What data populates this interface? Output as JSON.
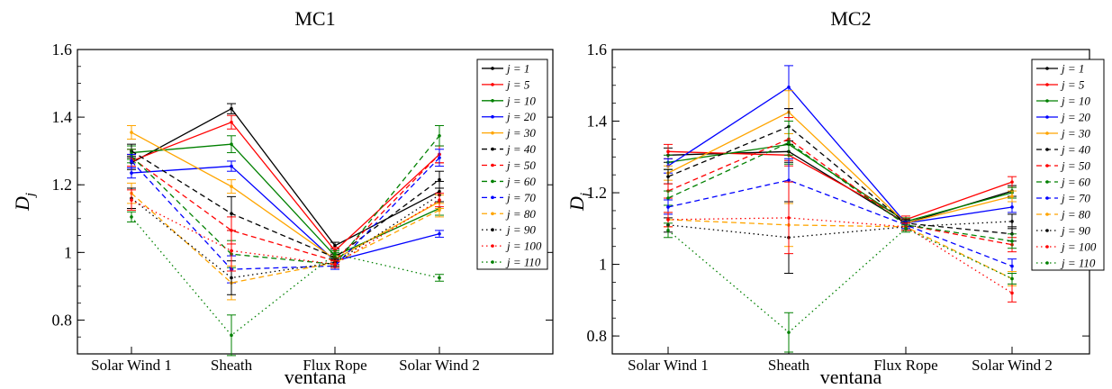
{
  "figure": {
    "charts": [
      {
        "title": "MC1"
      },
      {
        "title": "MC2"
      }
    ]
  },
  "chart_data": [
    {
      "type": "line",
      "title": "MC1",
      "xlabel": "ventana",
      "ylabel_main": "D",
      "ylabel_sub": "j",
      "ylim": [
        0.7,
        1.6
      ],
      "yticks": [
        "0.8",
        "1",
        "1.2",
        "1.4",
        "1.6"
      ],
      "ytick_values": [
        0.8,
        1.0,
        1.2,
        1.4,
        1.6
      ],
      "categories": [
        "Solar Wind 1",
        "Sheath",
        "Flux Rope",
        "Solar Wind 2"
      ],
      "legend_position": "top-right",
      "series": [
        {
          "name": "j = 1",
          "color": "#000000",
          "dash": "solid",
          "values": [
            1.265,
            1.425,
            1.02,
            1.18
          ],
          "errors": [
            0.02,
            0.015,
            0.01,
            0.03
          ]
        },
        {
          "name": "j = 5",
          "color": "#ff0000",
          "dash": "solid",
          "values": [
            1.27,
            1.385,
            1.005,
            1.29
          ],
          "errors": [
            0.02,
            0.02,
            0.01,
            0.025
          ]
        },
        {
          "name": "j = 10",
          "color": "#008000",
          "dash": "solid",
          "values": [
            1.295,
            1.32,
            0.99,
            1.13
          ],
          "errors": [
            0.02,
            0.025,
            0.01,
            0.02
          ]
        },
        {
          "name": "j = 20",
          "color": "#0000ff",
          "dash": "solid",
          "values": [
            1.235,
            1.255,
            0.975,
            1.055
          ],
          "errors": [
            0.015,
            0.015,
            0.01,
            0.01
          ]
        },
        {
          "name": "j = 30",
          "color": "#ffa500",
          "dash": "solid",
          "values": [
            1.355,
            1.195,
            0.98,
            1.15
          ],
          "errors": [
            0.02,
            0.02,
            0.01,
            0.02
          ]
        },
        {
          "name": "j = 40",
          "color": "#000000",
          "dash": "dashed",
          "values": [
            1.3,
            1.115,
            0.985,
            1.215
          ],
          "errors": [
            0.02,
            0.05,
            0.01,
            0.025
          ]
        },
        {
          "name": "j = 50",
          "color": "#ff0000",
          "dash": "dashed",
          "values": [
            1.28,
            1.065,
            0.975,
            1.29
          ],
          "errors": [
            0.025,
            0.04,
            0.01,
            0.025
          ]
        },
        {
          "name": "j = 60",
          "color": "#008000",
          "dash": "dashed",
          "values": [
            1.285,
            0.995,
            0.965,
            1.345
          ],
          "errors": [
            0.02,
            0.04,
            0.01,
            0.03
          ]
        },
        {
          "name": "j = 70",
          "color": "#0000ff",
          "dash": "dashed",
          "values": [
            1.27,
            0.95,
            0.96,
            1.28
          ],
          "errors": [
            0.02,
            0.04,
            0.01,
            0.025
          ]
        },
        {
          "name": "j = 80",
          "color": "#ffa500",
          "dash": "dashed",
          "values": [
            1.175,
            0.91,
            0.97,
            1.125
          ],
          "errors": [
            0.03,
            0.05,
            0.01,
            0.02
          ]
        },
        {
          "name": "j = 90",
          "color": "#000000",
          "dash": "dotted",
          "values": [
            1.16,
            0.925,
            0.97,
            1.17
          ],
          "errors": [
            0.03,
            0.05,
            0.01,
            0.02
          ]
        },
        {
          "name": "j = 100",
          "color": "#ff0000",
          "dash": "dotted",
          "values": [
            1.155,
            1.005,
            0.965,
            1.155
          ],
          "errors": [
            0.03,
            0.06,
            0.01,
            0.02
          ]
        },
        {
          "name": "j = 110",
          "color": "#008000",
          "dash": "dotted",
          "values": [
            1.105,
            0.755,
            0.995,
            0.925
          ],
          "errors": [
            0.015,
            0.06,
            0.01,
            0.01
          ]
        }
      ]
    },
    {
      "type": "line",
      "title": "MC2",
      "xlabel": "ventana",
      "ylabel_main": "D",
      "ylabel_sub": "j",
      "ylim": [
        0.75,
        1.6
      ],
      "yticks": [
        "0.8",
        "1",
        "1.2",
        "1.4",
        "1.6"
      ],
      "ytick_values": [
        0.8,
        1.0,
        1.2,
        1.4,
        1.6
      ],
      "categories": [
        "Solar Wind 1",
        "Sheath",
        "Flux Rope",
        "Solar Wind 2"
      ],
      "legend_position": "top-right",
      "series": [
        {
          "name": "j = 1",
          "color": "#000000",
          "dash": "solid",
          "values": [
            1.305,
            1.315,
            1.115,
            1.205
          ],
          "errors": [
            0.02,
            0.03,
            0.01,
            0.015
          ]
        },
        {
          "name": "j = 5",
          "color": "#ff0000",
          "dash": "solid",
          "values": [
            1.315,
            1.305,
            1.125,
            1.23
          ],
          "errors": [
            0.02,
            0.03,
            0.01,
            0.015
          ]
        },
        {
          "name": "j = 10",
          "color": "#008000",
          "dash": "solid",
          "values": [
            1.285,
            1.335,
            1.12,
            1.2
          ],
          "errors": [
            0.02,
            0.03,
            0.01,
            0.015
          ]
        },
        {
          "name": "j = 20",
          "color": "#0000ff",
          "dash": "solid",
          "values": [
            1.275,
            1.495,
            1.115,
            1.16
          ],
          "errors": [
            0.02,
            0.06,
            0.01,
            0.015
          ]
        },
        {
          "name": "j = 30",
          "color": "#ffa500",
          "dash": "solid",
          "values": [
            1.255,
            1.425,
            1.115,
            1.19
          ],
          "errors": [
            0.02,
            0.06,
            0.01,
            0.015
          ]
        },
        {
          "name": "j = 40",
          "color": "#000000",
          "dash": "dashed",
          "values": [
            1.245,
            1.385,
            1.115,
            1.085
          ],
          "errors": [
            0.02,
            0.05,
            0.01,
            0.02
          ]
        },
        {
          "name": "j = 50",
          "color": "#ff0000",
          "dash": "dashed",
          "values": [
            1.205,
            1.35,
            1.11,
            1.055
          ],
          "errors": [
            0.02,
            0.06,
            0.01,
            0.02
          ]
        },
        {
          "name": "j = 60",
          "color": "#008000",
          "dash": "dashed",
          "values": [
            1.185,
            1.34,
            1.11,
            1.065
          ],
          "errors": [
            0.02,
            0.06,
            0.01,
            0.02
          ]
        },
        {
          "name": "j = 70",
          "color": "#0000ff",
          "dash": "dashed",
          "values": [
            1.16,
            1.235,
            1.11,
            0.995
          ],
          "errors": [
            0.02,
            0.06,
            0.01,
            0.02
          ]
        },
        {
          "name": "j = 80",
          "color": "#ffa500",
          "dash": "dashed",
          "values": [
            1.125,
            1.11,
            1.105,
            0.96
          ],
          "errors": [
            0.02,
            0.06,
            0.01,
            0.02
          ]
        },
        {
          "name": "j = 90",
          "color": "#000000",
          "dash": "dotted",
          "values": [
            1.11,
            1.075,
            1.105,
            1.12
          ],
          "errors": [
            0.02,
            0.1,
            0.01,
            0.02
          ]
        },
        {
          "name": "j = 100",
          "color": "#ff0000",
          "dash": "dotted",
          "values": [
            1.125,
            1.13,
            1.105,
            0.92
          ],
          "errors": [
            0.02,
            0.1,
            0.01,
            0.025
          ]
        },
        {
          "name": "j = 110",
          "color": "#008000",
          "dash": "dotted",
          "values": [
            1.095,
            0.81,
            1.1,
            0.96
          ],
          "errors": [
            0.02,
            0.055,
            0.01,
            0.015
          ]
        }
      ]
    }
  ]
}
